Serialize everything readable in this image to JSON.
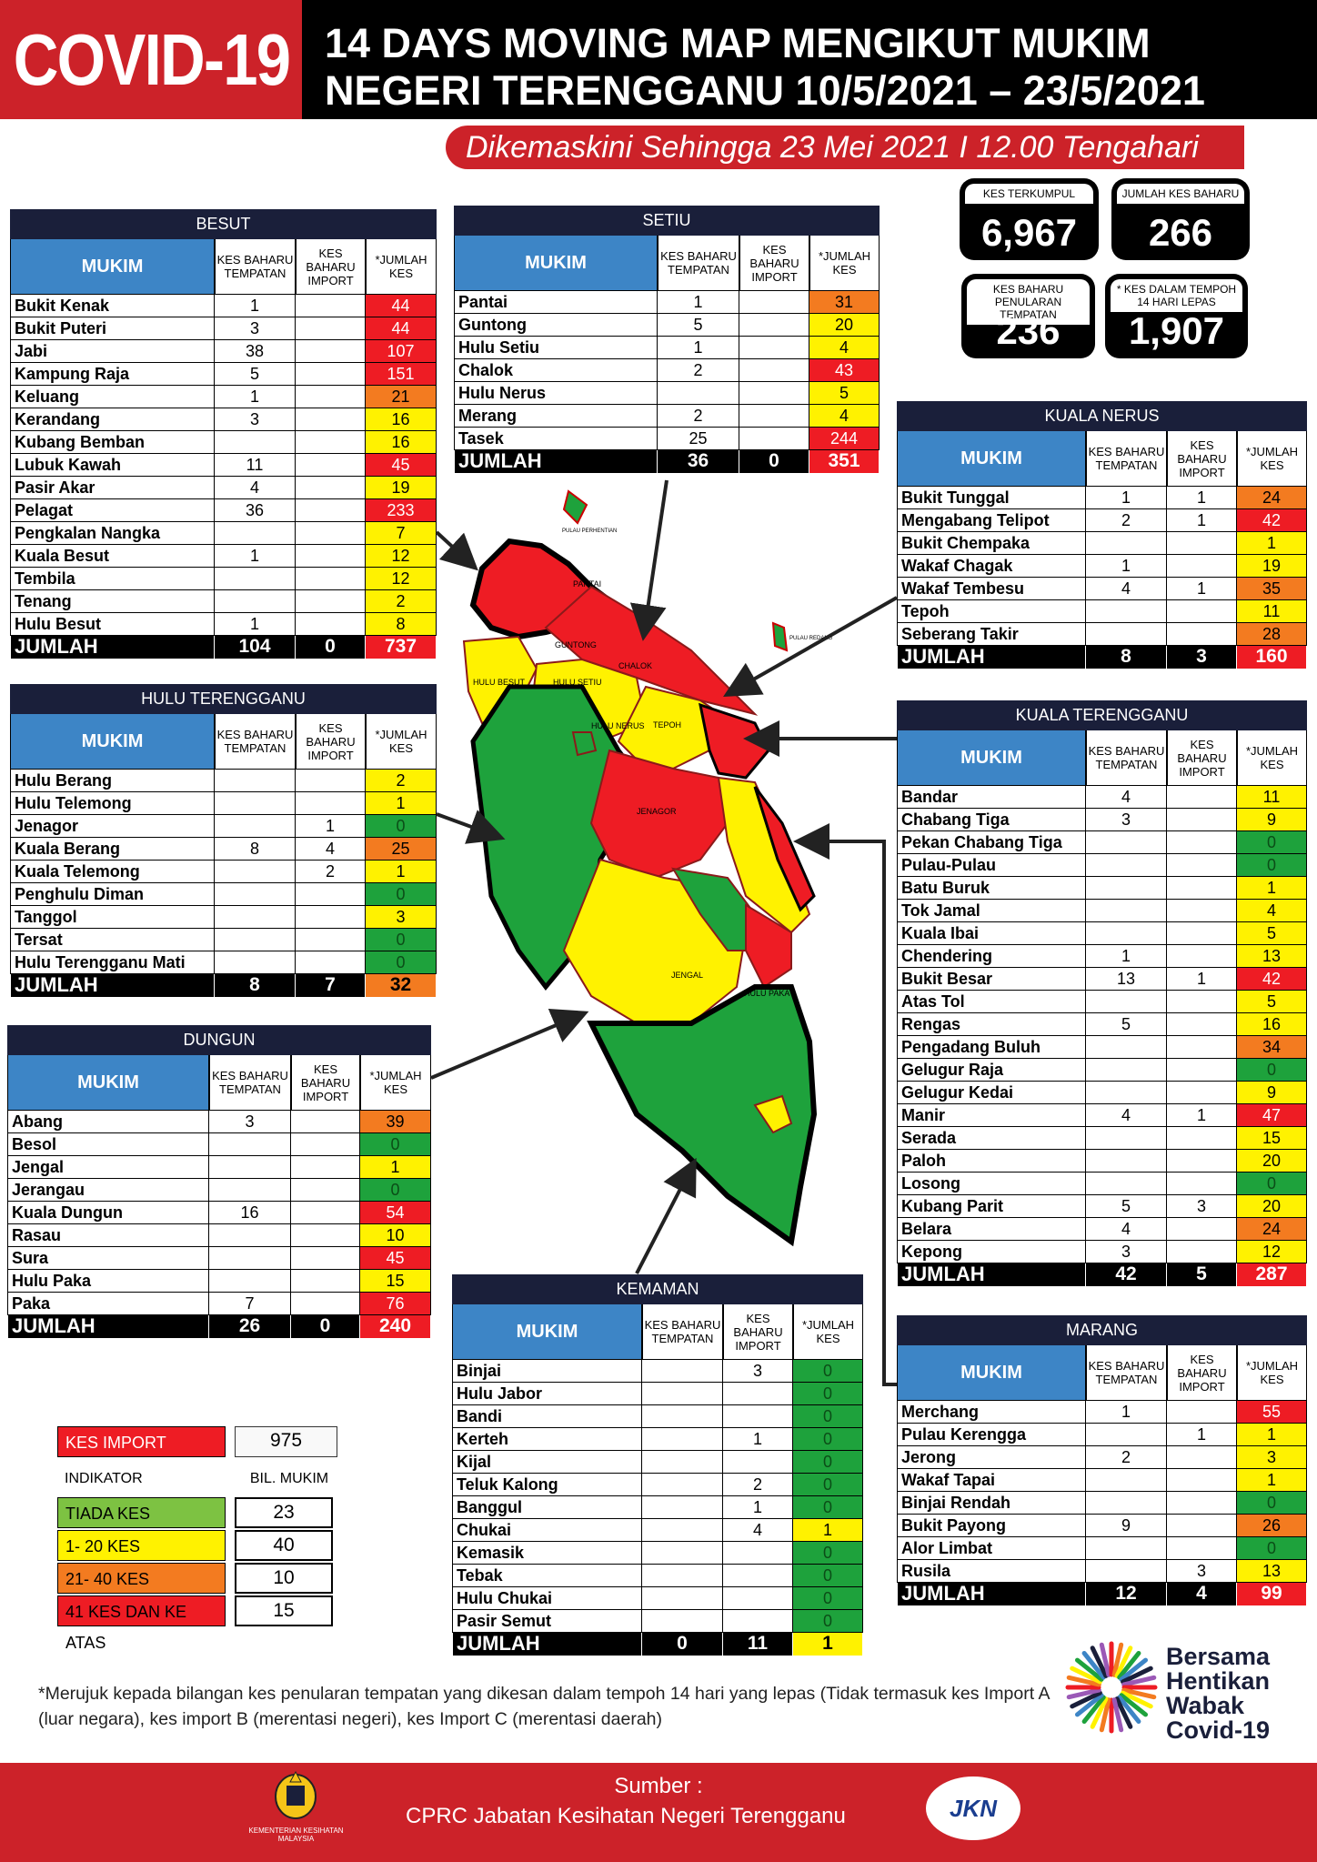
{
  "header": {
    "badge": "COVID-19",
    "title_line1": "14 DAYS MOVING MAP MENGIKUT MUKIM",
    "title_line2": "NEGERI TERENGGANU 10/5/2021 – 23/5/2021",
    "updated": "Dikemaskini Sehingga 23 Mei 2021 I 12.00 Tengahari"
  },
  "stats": [
    {
      "label": "KES TERKUMPUL",
      "value": "6,967"
    },
    {
      "label": "JUMLAH KES BAHARU",
      "value": "266"
    },
    {
      "label": "KES BAHARU PENULARAN TEMPATAN",
      "value": "236"
    },
    {
      "label": "* KES DALAM TEMPOH 14 HARI LEPAS",
      "value": "1,907"
    }
  ],
  "table_headers": {
    "mukim": "MUKIM",
    "tempatan": "KES BAHARU TEMPATAN",
    "import": "KES BAHARU IMPORT",
    "jumlah": "*JUMLAH KES",
    "total": "JUMLAH"
  },
  "colors": {
    "green": "#1ea23c",
    "yellow": "#fff200",
    "orange": "#f37b20",
    "red": "#ee1c24",
    "navy": "#1a1f3a",
    "blue": "#3d85c6",
    "brand_red": "#cc2229"
  },
  "districts": {
    "besut": {
      "name": "BESUT",
      "rows": [
        [
          "Bukit Kenak",
          "1",
          "",
          "44",
          "red"
        ],
        [
          "Bukit Puteri",
          "3",
          "",
          "44",
          "red"
        ],
        [
          "Jabi",
          "38",
          "",
          "107",
          "red"
        ],
        [
          "Kampung Raja",
          "5",
          "",
          "151",
          "red"
        ],
        [
          "Keluang",
          "1",
          "",
          "21",
          "orange"
        ],
        [
          "Kerandang",
          "3",
          "",
          "16",
          "yellow"
        ],
        [
          "Kubang Bemban",
          "",
          "",
          "16",
          "yellow"
        ],
        [
          "Lubuk Kawah",
          "11",
          "",
          "45",
          "red"
        ],
        [
          "Pasir Akar",
          "4",
          "",
          "19",
          "yellow"
        ],
        [
          "Pelagat",
          "36",
          "",
          "233",
          "red"
        ],
        [
          "Pengkalan Nangka",
          "",
          "",
          "7",
          "yellow"
        ],
        [
          "Kuala Besut",
          "1",
          "",
          "12",
          "yellow"
        ],
        [
          "Tembila",
          "",
          "",
          "12",
          "yellow"
        ],
        [
          "Tenang",
          "",
          "",
          "2",
          "yellow"
        ],
        [
          "Hulu Besut",
          "1",
          "",
          "8",
          "yellow"
        ]
      ],
      "total": [
        "104",
        "0",
        "737",
        "red"
      ]
    },
    "setiu": {
      "name": "SETIU",
      "rows": [
        [
          "Pantai",
          "1",
          "",
          "31",
          "orange"
        ],
        [
          "Guntong",
          "5",
          "",
          "20",
          "yellow"
        ],
        [
          "Hulu Setiu",
          "1",
          "",
          "4",
          "yellow"
        ],
        [
          "Chalok",
          "2",
          "",
          "43",
          "red"
        ],
        [
          "Hulu Nerus",
          "",
          "",
          "5",
          "yellow"
        ],
        [
          "Merang",
          "2",
          "",
          "4",
          "yellow"
        ],
        [
          "Tasek",
          "25",
          "",
          "244",
          "red"
        ]
      ],
      "total": [
        "36",
        "0",
        "351",
        "red"
      ]
    },
    "hulu_terengganu": {
      "name": "HULU TERENGGANU",
      "rows": [
        [
          "Hulu Berang",
          "",
          "",
          "2",
          "yellow"
        ],
        [
          "Hulu Telemong",
          "",
          "",
          "1",
          "yellow"
        ],
        [
          "Jenagor",
          "",
          "1",
          "0",
          "green"
        ],
        [
          "Kuala Berang",
          "8",
          "4",
          "25",
          "orange"
        ],
        [
          "Kuala Telemong",
          "",
          "2",
          "1",
          "yellow"
        ],
        [
          "Penghulu Diman",
          "",
          "",
          "0",
          "green"
        ],
        [
          "Tanggol",
          "",
          "",
          "3",
          "yellow"
        ],
        [
          "Tersat",
          "",
          "",
          "0",
          "green"
        ],
        [
          "Hulu Terengganu Mati",
          "",
          "",
          "0",
          "green"
        ]
      ],
      "total": [
        "8",
        "7",
        "32",
        "orange"
      ]
    },
    "dungun": {
      "name": "DUNGUN",
      "rows": [
        [
          "Abang",
          "3",
          "",
          "39",
          "orange"
        ],
        [
          "Besol",
          "",
          "",
          "0",
          "green"
        ],
        [
          "Jengal",
          "",
          "",
          "1",
          "yellow"
        ],
        [
          "Jerangau",
          "",
          "",
          "0",
          "green"
        ],
        [
          "Kuala Dungun",
          "16",
          "",
          "54",
          "red"
        ],
        [
          "Rasau",
          "",
          "",
          "10",
          "yellow"
        ],
        [
          "Sura",
          "",
          "",
          "45",
          "red"
        ],
        [
          "Hulu Paka",
          "",
          "",
          "15",
          "yellow"
        ],
        [
          "Paka",
          "7",
          "",
          "76",
          "red"
        ]
      ],
      "total": [
        "26",
        "0",
        "240",
        "red"
      ]
    },
    "kemaman": {
      "name": "KEMAMAN",
      "rows": [
        [
          "Binjai",
          "",
          "3",
          "0",
          "green"
        ],
        [
          "Hulu Jabor",
          "",
          "",
          "0",
          "green"
        ],
        [
          "Bandi",
          "",
          "",
          "0",
          "green"
        ],
        [
          "Kerteh",
          "",
          "1",
          "0",
          "green"
        ],
        [
          "Kijal",
          "",
          "",
          "0",
          "green"
        ],
        [
          "Teluk Kalong",
          "",
          "2",
          "0",
          "green"
        ],
        [
          "Banggul",
          "",
          "1",
          "0",
          "green"
        ],
        [
          "Chukai",
          "",
          "4",
          "1",
          "yellow"
        ],
        [
          "Kemasik",
          "",
          "",
          "0",
          "green"
        ],
        [
          "Tebak",
          "",
          "",
          "0",
          "green"
        ],
        [
          "Hulu Chukai",
          "",
          "",
          "0",
          "green"
        ],
        [
          "Pasir Semut",
          "",
          "",
          "0",
          "green"
        ]
      ],
      "total": [
        "0",
        "11",
        "1",
        "yellow"
      ]
    },
    "kuala_nerus": {
      "name": "KUALA NERUS",
      "rows": [
        [
          "Bukit Tunggal",
          "1",
          "1",
          "24",
          "orange"
        ],
        [
          "Mengabang Telipot",
          "2",
          "1",
          "42",
          "red"
        ],
        [
          "Bukit Chempaka",
          "",
          "",
          "1",
          "yellow"
        ],
        [
          "Wakaf Chagak",
          "1",
          "",
          "19",
          "yellow"
        ],
        [
          "Wakaf Tembesu",
          "4",
          "1",
          "35",
          "orange"
        ],
        [
          "Tepoh",
          "",
          "",
          "11",
          "yellow"
        ],
        [
          "Seberang Takir",
          "",
          "",
          "28",
          "orange"
        ]
      ],
      "total": [
        "8",
        "3",
        "160",
        "red"
      ]
    },
    "kuala_terengganu": {
      "name": "KUALA TERENGGANU",
      "rows": [
        [
          "Bandar",
          "4",
          "",
          "11",
          "yellow"
        ],
        [
          "Chabang Tiga",
          "3",
          "",
          "9",
          "yellow"
        ],
        [
          "Pekan Chabang Tiga",
          "",
          "",
          "0",
          "green"
        ],
        [
          "Pulau-Pulau",
          "",
          "",
          "0",
          "green"
        ],
        [
          "Batu Buruk",
          "",
          "",
          "1",
          "yellow"
        ],
        [
          "Tok Jamal",
          "",
          "",
          "4",
          "yellow"
        ],
        [
          "Kuala Ibai",
          "",
          "",
          "5",
          "yellow"
        ],
        [
          "Chendering",
          "1",
          "",
          "13",
          "yellow"
        ],
        [
          "Bukit Besar",
          "13",
          "1",
          "42",
          "red"
        ],
        [
          "Atas Tol",
          "",
          "",
          "5",
          "yellow"
        ],
        [
          "Rengas",
          "5",
          "",
          "16",
          "yellow"
        ],
        [
          "Pengadang Buluh",
          "",
          "",
          "34",
          "orange"
        ],
        [
          "Gelugur Raja",
          "",
          "",
          "0",
          "green"
        ],
        [
          "Gelugur Kedai",
          "",
          "",
          "9",
          "yellow"
        ],
        [
          "Manir",
          "4",
          "1",
          "47",
          "red"
        ],
        [
          "Serada",
          "",
          "",
          "15",
          "yellow"
        ],
        [
          "Paloh",
          "",
          "",
          "20",
          "yellow"
        ],
        [
          "Losong",
          "",
          "",
          "0",
          "green"
        ],
        [
          "Kubang Parit",
          "5",
          "3",
          "20",
          "yellow"
        ],
        [
          "Belara",
          "4",
          "",
          "24",
          "orange"
        ],
        [
          "Kepong",
          "3",
          "",
          "12",
          "yellow"
        ]
      ],
      "total": [
        "42",
        "5",
        "287",
        "red"
      ]
    },
    "marang": {
      "name": "MARANG",
      "rows": [
        [
          "Merchang",
          "1",
          "",
          "55",
          "red"
        ],
        [
          "Pulau Kerengga",
          "",
          "1",
          "1",
          "yellow"
        ],
        [
          "Jerong",
          "2",
          "",
          "3",
          "yellow"
        ],
        [
          "Wakaf Tapai",
          "",
          "",
          "1",
          "yellow"
        ],
        [
          "Binjai Rendah",
          "",
          "",
          "0",
          "green"
        ],
        [
          "Bukit Payong",
          "9",
          "",
          "26",
          "orange"
        ],
        [
          "Alor Limbat",
          "",
          "",
          "0",
          "green"
        ],
        [
          "Rusila",
          "",
          "3",
          "13",
          "yellow"
        ]
      ],
      "total": [
        "12",
        "4",
        "99",
        "red"
      ]
    }
  },
  "legend": {
    "import_label": "KES IMPORT",
    "import_value": "975",
    "indikator": "INDIKATOR",
    "bil_mukim": "BIL. MUKIM",
    "items": [
      {
        "label": "TIADA KES",
        "count": "23",
        "color": "#7dc242"
      },
      {
        "label": "1- 20 KES",
        "count": "40",
        "color": "#fff200"
      },
      {
        "label": "21- 40 KES",
        "count": "10",
        "color": "#f37b20"
      },
      {
        "label": "41 KES DAN KE ATAS",
        "count": "15",
        "color": "#ee1c24"
      }
    ]
  },
  "map_labels": [
    "PANTAI",
    "GUNTONG",
    "CHALOK",
    "HULU BESUT",
    "HULU SETIU",
    "HULU NERUS",
    "TEPOH",
    "JENAGOR",
    "JENGAL",
    "HULU PAKA",
    "PULAU PERHENTIAN",
    "PULAU REDANG"
  ],
  "footnote": "*Merujuk kepada bilangan kes penularan tempatan yang dikesan dalam tempoh 14 hari yang lepas (Tidak termasuk kes Import A (luar negara), kes import B (merentasi negeri), kes Import C (merentasi daerah)",
  "campaign": {
    "line1": "Bersama",
    "line2": "Hentikan",
    "line3": "Wabak",
    "line4": "Covid-19"
  },
  "footer": {
    "sumber": "Sumber :",
    "source": "CPRC Jabatan Kesihatan Negeri  Terengganu",
    "ministry": "KEMENTERIAN KESIHATAN MALAYSIA",
    "logo_text": "JKN"
  }
}
